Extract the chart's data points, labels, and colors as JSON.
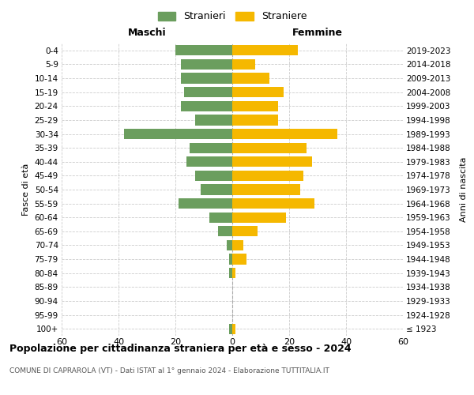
{
  "age_groups": [
    "100+",
    "95-99",
    "90-94",
    "85-89",
    "80-84",
    "75-79",
    "70-74",
    "65-69",
    "60-64",
    "55-59",
    "50-54",
    "45-49",
    "40-44",
    "35-39",
    "30-34",
    "25-29",
    "20-24",
    "15-19",
    "10-14",
    "5-9",
    "0-4"
  ],
  "birth_years": [
    "≤ 1923",
    "1924-1928",
    "1929-1933",
    "1934-1938",
    "1939-1943",
    "1944-1948",
    "1949-1953",
    "1954-1958",
    "1959-1963",
    "1964-1968",
    "1969-1973",
    "1974-1978",
    "1979-1983",
    "1984-1988",
    "1989-1993",
    "1994-1998",
    "1999-2003",
    "2004-2008",
    "2009-2013",
    "2014-2018",
    "2019-2023"
  ],
  "males": [
    1,
    0,
    0,
    0,
    1,
    1,
    2,
    5,
    8,
    19,
    11,
    13,
    16,
    15,
    38,
    13,
    18,
    17,
    18,
    18,
    20
  ],
  "females": [
    1,
    0,
    0,
    0,
    1,
    5,
    4,
    9,
    19,
    29,
    24,
    25,
    28,
    26,
    37,
    16,
    16,
    18,
    13,
    8,
    23
  ],
  "male_color": "#6b9e5e",
  "female_color": "#f5b800",
  "xlim": 60,
  "title": "Popolazione per cittadinanza straniera per età e sesso - 2024",
  "subtitle": "COMUNE DI CAPRAROLA (VT) - Dati ISTAT al 1° gennaio 2024 - Elaborazione TUTTITALIA.IT",
  "legend_male": "Stranieri",
  "legend_female": "Straniere",
  "left_header": "Maschi",
  "right_header": "Femmine",
  "ylabel_left": "Fasce di età",
  "ylabel_right": "Anni di nascita",
  "bg_color": "#ffffff",
  "grid_color": "#cccccc",
  "bar_height": 0.75
}
